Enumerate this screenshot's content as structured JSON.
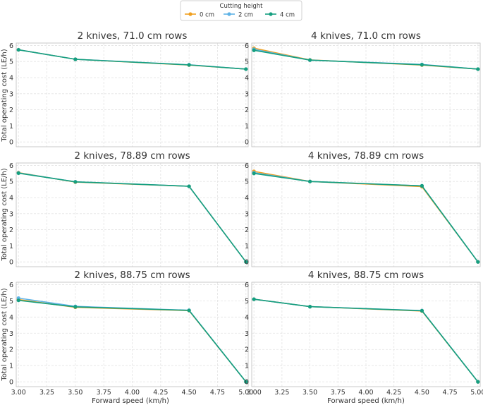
{
  "legend": {
    "title": "Cutting height",
    "entries": [
      {
        "label": "0 cm",
        "color": "#f0a020"
      },
      {
        "label": "2 cm",
        "color": "#5fb3e6"
      },
      {
        "label": "4 cm",
        "color": "#159f80"
      }
    ]
  },
  "chart_data": {
    "type": "line",
    "xlabel": "Forward speed (km/h)",
    "ylabel": "Total operating cost (LE/h)",
    "x_ticks": [
      "3.00",
      "3.25",
      "3.50",
      "3.75",
      "4.00",
      "4.25",
      "4.50",
      "4.75",
      "5.00"
    ],
    "y_ticks": [
      "0",
      "1",
      "2",
      "3",
      "4",
      "5",
      "6"
    ],
    "xlim": [
      2.98,
      5.02
    ],
    "ylim": [
      -0.3,
      6.15
    ],
    "grid": true,
    "legend_position": "top-center",
    "panels": [
      {
        "title": "2 knives, 71.0 cm rows",
        "series": [
          {
            "name": "0 cm",
            "x": [
              3.0,
              3.5,
              4.5,
              5.0
            ],
            "y": [
              5.73,
              5.14,
              4.78,
              4.53
            ]
          },
          {
            "name": "2 cm",
            "x": [
              3.0,
              3.5,
              4.5,
              5.0
            ],
            "y": [
              5.73,
              5.14,
              4.8,
              4.53
            ]
          },
          {
            "name": "4 cm",
            "x": [
              3.0,
              3.5,
              4.5,
              5.0
            ],
            "y": [
              5.73,
              5.14,
              4.79,
              4.53
            ]
          }
        ]
      },
      {
        "title": "4 knives, 71.0 cm rows",
        "series": [
          {
            "name": "0 cm",
            "x": [
              3.0,
              3.5,
              4.5,
              5.0
            ],
            "y": [
              5.83,
              5.1,
              4.78,
              4.53
            ]
          },
          {
            "name": "2 cm",
            "x": [
              3.0,
              3.5,
              4.5,
              5.0
            ],
            "y": [
              5.76,
              5.09,
              4.82,
              4.53
            ]
          },
          {
            "name": "4 cm",
            "x": [
              3.0,
              3.5,
              4.5,
              5.0
            ],
            "y": [
              5.7,
              5.09,
              4.8,
              4.53
            ]
          }
        ]
      },
      {
        "title": "2 knives, 78.89 cm rows",
        "series": [
          {
            "name": "0 cm",
            "x": [
              3.0,
              3.5,
              4.5,
              5.0
            ],
            "y": [
              5.55,
              4.96,
              4.7,
              0.0
            ]
          },
          {
            "name": "2 cm",
            "x": [
              3.0,
              3.5,
              4.5,
              5.0
            ],
            "y": [
              5.53,
              4.98,
              4.7,
              0.0
            ]
          },
          {
            "name": "4 cm",
            "x": [
              3.0,
              3.5,
              4.5,
              5.0
            ],
            "y": [
              5.52,
              4.98,
              4.7,
              0.0
            ]
          }
        ]
      },
      {
        "title": "4 knives, 78.89 cm rows",
        "series": [
          {
            "name": "0 cm",
            "x": [
              3.0,
              3.5,
              4.5,
              5.0
            ],
            "y": [
              5.63,
              5.0,
              4.68,
              0.0
            ]
          },
          {
            "name": "2 cm",
            "x": [
              3.0,
              3.5,
              4.5,
              5.0
            ],
            "y": [
              5.55,
              5.0,
              4.73,
              0.0
            ]
          },
          {
            "name": "4 cm",
            "x": [
              3.0,
              3.5,
              4.5,
              5.0
            ],
            "y": [
              5.5,
              5.0,
              4.73,
              0.0
            ]
          }
        ]
      },
      {
        "title": "2 knives, 88.75 cm rows",
        "series": [
          {
            "name": "0 cm",
            "x": [
              3.0,
              3.5,
              4.5,
              5.0
            ],
            "y": [
              5.08,
              4.6,
              4.4,
              0.0
            ]
          },
          {
            "name": "2 cm",
            "x": [
              3.0,
              3.5,
              4.5,
              5.0
            ],
            "y": [
              5.17,
              4.66,
              4.42,
              0.0
            ]
          },
          {
            "name": "4 cm",
            "x": [
              3.0,
              3.5,
              4.5,
              5.0
            ],
            "y": [
              5.03,
              4.63,
              4.41,
              0.0
            ]
          }
        ]
      },
      {
        "title": "4 knives, 88.75 cm rows",
        "series": [
          {
            "name": "0 cm",
            "x": [
              3.0,
              3.5,
              4.5,
              5.0
            ],
            "y": [
              5.1,
              4.64,
              4.37,
              0.0
            ]
          },
          {
            "name": "2 cm",
            "x": [
              3.0,
              3.5,
              4.5,
              5.0
            ],
            "y": [
              5.1,
              4.64,
              4.4,
              0.0
            ]
          },
          {
            "name": "4 cm",
            "x": [
              3.0,
              3.5,
              4.5,
              5.0
            ],
            "y": [
              5.1,
              4.64,
              4.39,
              0.0
            ]
          }
        ]
      }
    ]
  }
}
